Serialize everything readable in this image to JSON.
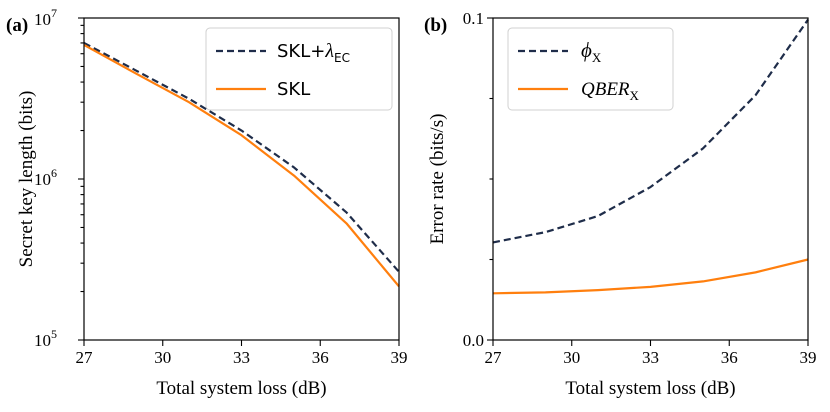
{
  "chart_data": [
    {
      "id": "a",
      "panel_label": "(a)",
      "type": "line",
      "yscale": "log",
      "xlabel": "Total system loss (dB)",
      "ylabel": "Secret key length (bits)",
      "xlim": [
        27,
        39
      ],
      "ylim": [
        100000,
        10000000
      ],
      "xticks": [
        27,
        30,
        33,
        36,
        39
      ],
      "xtick_labels": [
        "27",
        "30",
        "33",
        "36",
        "39"
      ],
      "yticks_major": [
        100000,
        1000000,
        10000000
      ],
      "ytick_labels": [
        {
          "base": "10",
          "exp": "5"
        },
        {
          "base": "10",
          "exp": "6"
        },
        {
          "base": "10",
          "exp": "7"
        }
      ],
      "legend_position": "top-right",
      "series": [
        {
          "name_main": "SKL+",
          "name_symbol": "λ",
          "name_sub": "EC",
          "color": "#1f2d4a",
          "style": "dashed",
          "x": [
            27,
            29,
            31,
            33,
            35,
            37,
            39
          ],
          "values": [
            7000000,
            4700000,
            3150000,
            2000000,
            1180000,
            620000,
            265000
          ]
        },
        {
          "name_main": "SKL",
          "name_symbol": "",
          "name_sub": "",
          "color": "#ff7f0e",
          "style": "solid",
          "x": [
            27,
            29,
            31,
            33,
            35,
            37,
            39
          ],
          "values": [
            6800000,
            4500000,
            3000000,
            1870000,
            1050000,
            530000,
            215000
          ]
        }
      ]
    },
    {
      "id": "b",
      "panel_label": "(b)",
      "type": "line",
      "yscale": "linear",
      "xlabel": "Total system loss (dB)",
      "ylabel": "Error rate (bits/s)",
      "xlim": [
        27,
        39
      ],
      "ylim": [
        0.0,
        0.1
      ],
      "xticks": [
        27,
        30,
        33,
        36,
        39
      ],
      "xtick_labels": [
        "27",
        "30",
        "33",
        "36",
        "39"
      ],
      "yticks": [
        0.0,
        0.1
      ],
      "ytick_labels": [
        "0.0",
        "0.1"
      ],
      "yticks_minor": [
        0.025,
        0.05,
        0.075
      ],
      "legend_position": "top-left",
      "series": [
        {
          "name_main": "",
          "name_symbol": "ϕ",
          "name_sub": "X",
          "italic": false,
          "color": "#1f2d4a",
          "style": "dashed",
          "x": [
            27,
            29,
            31,
            33,
            35,
            37,
            39
          ],
          "values": [
            0.0303,
            0.0335,
            0.0385,
            0.0475,
            0.0595,
            0.076,
            0.0995
          ]
        },
        {
          "name_main": "QBER",
          "name_symbol": "",
          "name_sub": "X",
          "italic": true,
          "color": "#ff7f0e",
          "style": "solid",
          "x": [
            27,
            29,
            31,
            33,
            35,
            37,
            39
          ],
          "values": [
            0.0145,
            0.0148,
            0.0155,
            0.0165,
            0.0182,
            0.021,
            0.025
          ]
        }
      ]
    }
  ]
}
